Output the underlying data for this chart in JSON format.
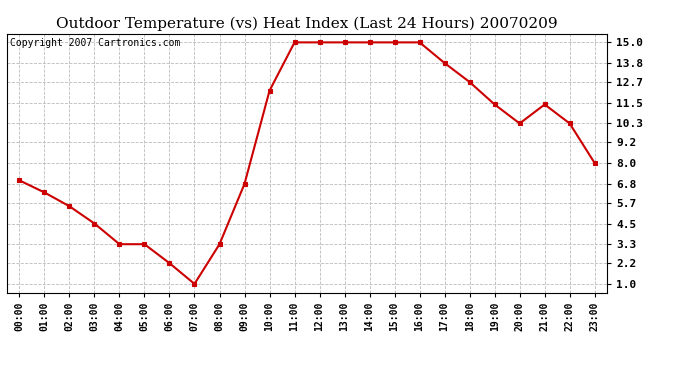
{
  "title": "Outdoor Temperature (vs) Heat Index (Last 24 Hours) 20070209",
  "copyright_text": "Copyright 2007 Cartronics.com",
  "x_labels": [
    "00:00",
    "01:00",
    "02:00",
    "03:00",
    "04:00",
    "05:00",
    "06:00",
    "07:00",
    "08:00",
    "09:00",
    "10:00",
    "11:00",
    "12:00",
    "13:00",
    "14:00",
    "15:00",
    "16:00",
    "17:00",
    "18:00",
    "19:00",
    "20:00",
    "21:00",
    "22:00",
    "23:00"
  ],
  "y_values": [
    7.0,
    6.3,
    5.5,
    4.5,
    3.3,
    3.3,
    2.2,
    1.0,
    3.3,
    6.8,
    12.2,
    15.0,
    15.0,
    15.0,
    15.0,
    15.0,
    15.0,
    13.8,
    12.7,
    11.4,
    10.3,
    11.4,
    10.3,
    8.0
  ],
  "y_ticks": [
    1.0,
    2.2,
    3.3,
    4.5,
    5.7,
    6.8,
    8.0,
    9.2,
    10.3,
    11.5,
    12.7,
    13.8,
    15.0
  ],
  "ylim": [
    0.5,
    15.5
  ],
  "line_color": "#cc0000",
  "marker": "s",
  "marker_color": "#cc0000",
  "marker_size": 2.5,
  "grid_color": "#bbbbbb",
  "background_color": "#ffffff",
  "title_fontsize": 11,
  "copyright_fontsize": 7,
  "tick_fontsize": 8,
  "x_tick_fontsize": 7
}
